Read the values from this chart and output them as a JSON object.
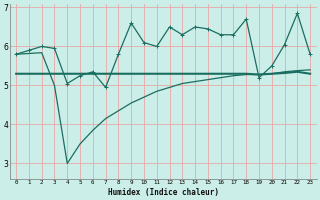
{
  "xlabel": "Humidex (Indice chaleur)",
  "bg_color": "#cceee8",
  "grid_color": "#e8a8a8",
  "line_color": "#1a6e60",
  "xlim": [
    -0.5,
    23.5
  ],
  "ylim": [
    2.6,
    7.1
  ],
  "yticks": [
    3,
    4,
    5,
    6,
    7
  ],
  "xticks": [
    0,
    1,
    2,
    3,
    4,
    5,
    6,
    7,
    8,
    9,
    10,
    11,
    12,
    13,
    14,
    15,
    16,
    17,
    18,
    19,
    20,
    21,
    22,
    23
  ],
  "line1_x": [
    0,
    1,
    2,
    3,
    4,
    5,
    6,
    7,
    8,
    9,
    10,
    11,
    12,
    13,
    14,
    15,
    16,
    17,
    18,
    19,
    20,
    21,
    22,
    23
  ],
  "line1_y": [
    5.8,
    5.9,
    6.0,
    5.95,
    5.05,
    5.25,
    5.35,
    4.95,
    5.8,
    6.6,
    6.1,
    6.0,
    6.5,
    6.3,
    6.5,
    6.45,
    6.3,
    6.3,
    6.7,
    5.2,
    5.5,
    6.05,
    6.85,
    5.8
  ],
  "line2_x": [
    0,
    1,
    2,
    3,
    4,
    5,
    6,
    7,
    8,
    9,
    10,
    11,
    12,
    13,
    14,
    15,
    16,
    17,
    18,
    19,
    20,
    21,
    22,
    23
  ],
  "line2_y": [
    5.3,
    5.3,
    5.3,
    5.3,
    5.3,
    5.3,
    5.3,
    5.3,
    5.3,
    5.3,
    5.3,
    5.3,
    5.3,
    5.3,
    5.3,
    5.3,
    5.3,
    5.3,
    5.3,
    5.28,
    5.3,
    5.32,
    5.35,
    5.3
  ],
  "line3_x": [
    0,
    1,
    2,
    3,
    4,
    5,
    6,
    7,
    8,
    9,
    10,
    11,
    12,
    13,
    14,
    15,
    16,
    17,
    18,
    19,
    20,
    21,
    22,
    23
  ],
  "line3_y": [
    5.8,
    5.82,
    5.84,
    5.0,
    3.0,
    3.5,
    3.85,
    4.15,
    4.35,
    4.55,
    4.7,
    4.85,
    4.95,
    5.05,
    5.1,
    5.15,
    5.2,
    5.25,
    5.28,
    5.28,
    5.3,
    5.35,
    5.38,
    5.4
  ]
}
